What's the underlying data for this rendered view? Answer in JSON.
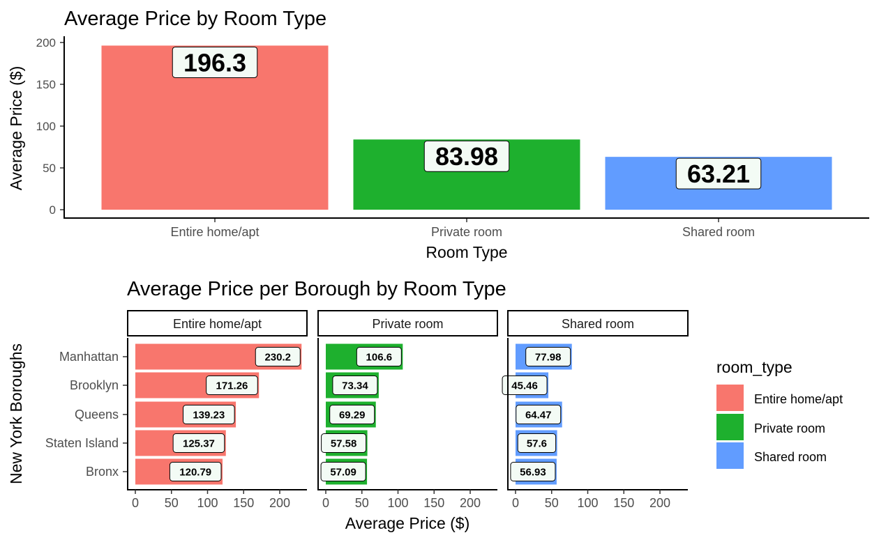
{
  "colors": {
    "Entire home/apt": "#F8766D",
    "Private room": "#1EB02E",
    "Shared room": "#619CFF"
  },
  "chart_data": [
    {
      "type": "bar",
      "title": "Average Price by Room Type",
      "xlabel": "Room Type",
      "ylabel": "Average Price ($)",
      "categories": [
        "Entire home/apt",
        "Private room",
        "Shared room"
      ],
      "values": [
        196.3,
        83.98,
        63.21
      ],
      "labels": [
        "196.3",
        "83.98",
        "63.21"
      ],
      "yticks": [
        "0",
        "50",
        "100",
        "150",
        "200"
      ],
      "ylim": [
        0,
        200
      ],
      "grid": false,
      "legend": "none"
    },
    {
      "type": "bar",
      "orientation": "horizontal",
      "faceted": true,
      "title": "Average Price per Borough by Room Type",
      "xlabel": "Average Price ($)",
      "ylabel": "New York Boroughs",
      "categories": [
        "Manhattan",
        "Brooklyn",
        "Queens",
        "Staten Island",
        "Bronx"
      ],
      "xticks": [
        "0",
        "50",
        "100",
        "150",
        "200"
      ],
      "xlim": [
        0,
        230
      ],
      "grid": false,
      "legend": "right",
      "legend_title": "room_type",
      "series": [
        {
          "name": "Entire home/apt",
          "values": [
            230.2,
            171.26,
            139.23,
            125.37,
            120.79
          ],
          "labels": [
            "230.2",
            "171.26",
            "139.23",
            "125.37",
            "120.79"
          ]
        },
        {
          "name": "Private room",
          "values": [
            106.6,
            73.34,
            69.29,
            57.58,
            57.09
          ],
          "labels": [
            "106.6",
            "73.34",
            "69.29",
            "57.58",
            "57.09"
          ]
        },
        {
          "name": "Shared room",
          "values": [
            77.98,
            45.46,
            64.47,
            57.6,
            56.93
          ],
          "labels": [
            "77.98",
            "45.46",
            "64.47",
            "57.6",
            "56.93"
          ]
        }
      ]
    }
  ]
}
